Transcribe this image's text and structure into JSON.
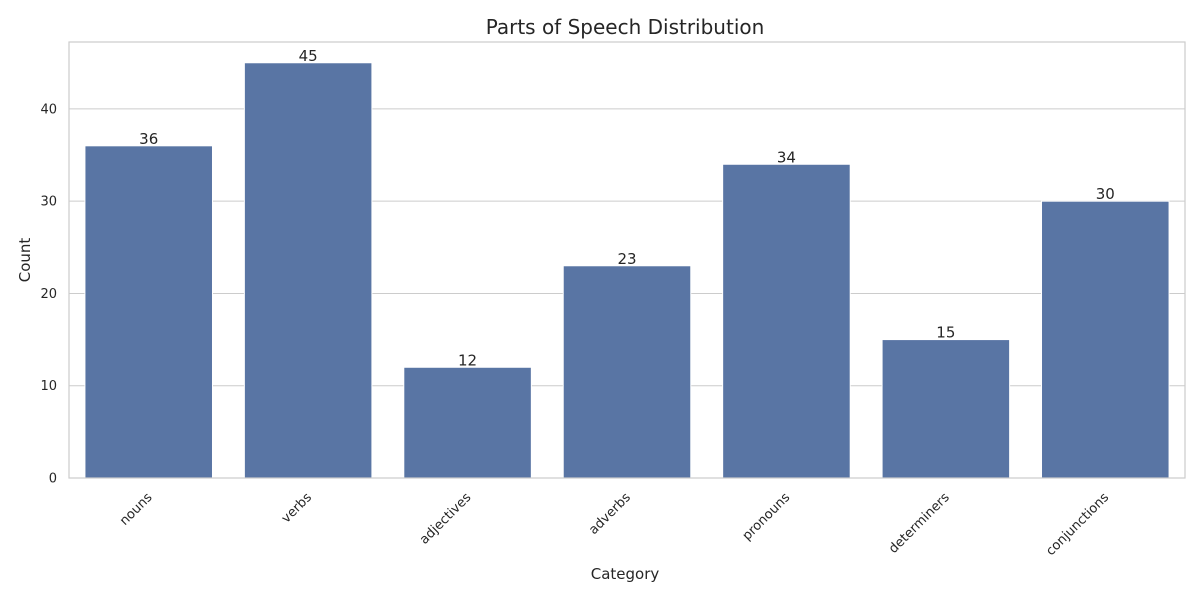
{
  "chart_data": {
    "type": "bar",
    "title": "Parts of Speech Distribution",
    "xlabel": "Category",
    "ylabel": "Count",
    "categories": [
      "nouns",
      "verbs",
      "adjectives",
      "adverbs",
      "pronouns",
      "determiners",
      "conjunctions"
    ],
    "values": [
      36,
      45,
      12,
      23,
      34,
      15,
      30
    ],
    "data_labels": [
      "36",
      "45",
      "12",
      "23",
      "34",
      "15",
      "30"
    ],
    "ylim": [
      0,
      47.25
    ],
    "yticks": [
      0,
      10,
      20,
      30,
      40
    ],
    "ytick_labels": [
      "0",
      "10",
      "20",
      "30",
      "40"
    ],
    "grid": "horizontal",
    "bar_color": "#5975a4",
    "x_tick_rotation": "45 degrees"
  }
}
